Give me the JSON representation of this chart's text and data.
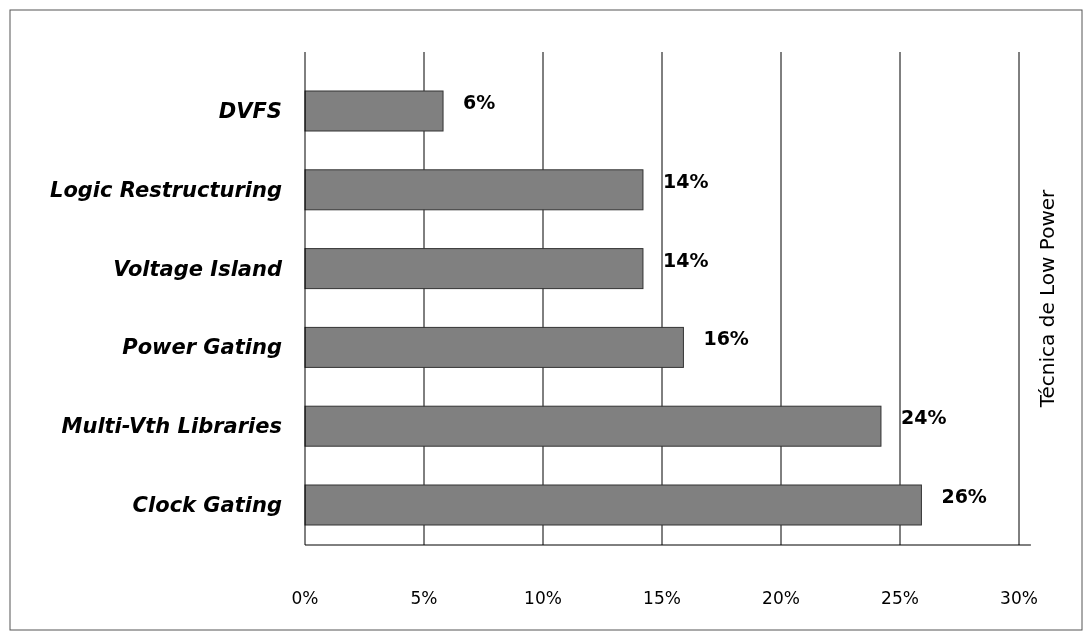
{
  "chart_data": {
    "type": "bar",
    "orientation": "horizontal",
    "y2label": "Técnica de Low Power",
    "categories": [
      "DVFS",
      "Logic Restructuring",
      "Voltage Island",
      "Power Gating",
      "Multi-Vth Libraries",
      "Clock Gating"
    ],
    "values": [
      5.8,
      14.2,
      14.2,
      15.9,
      24.2,
      25.9
    ],
    "value_labels": [
      "6%",
      "14%",
      "14%",
      "16%",
      "24%",
      "26%"
    ],
    "color": "#808080",
    "xlim": [
      0,
      30.5
    ],
    "xticks": [
      {
        "value": 0,
        "label": "0%"
      },
      {
        "value": 5,
        "label": "5%"
      },
      {
        "value": 10,
        "label": "10%"
      },
      {
        "value": 15,
        "label": "15%"
      },
      {
        "value": 20,
        "label": "20%"
      },
      {
        "value": 25,
        "label": "25%"
      },
      {
        "value": 30,
        "label": "30%"
      }
    ],
    "grid": "x"
  }
}
